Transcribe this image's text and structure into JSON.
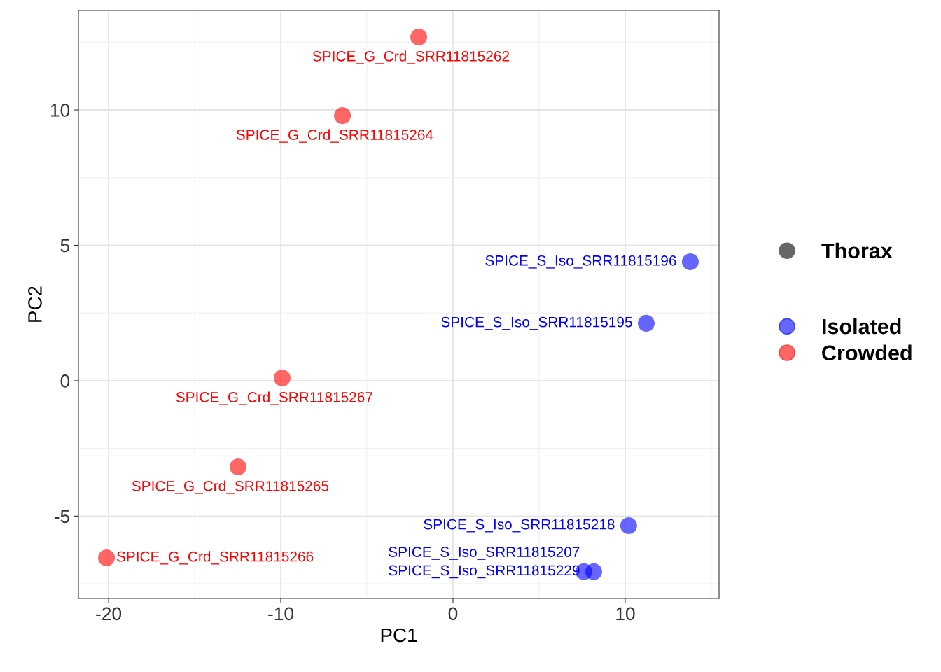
{
  "chart_data": {
    "type": "scatter",
    "xlabel": "PC1",
    "ylabel": "PC2",
    "legend_title": "Thorax",
    "xlim": [
      -21.75,
      15.45
    ],
    "ylim": [
      -8.04,
      13.67
    ],
    "xticks": [
      -20,
      -10,
      0,
      10
    ],
    "yticks": [
      -5,
      0,
      5,
      10
    ],
    "grid": true,
    "legend": "right",
    "marker": "circle",
    "series": [
      {
        "name": "Isolated",
        "color": "#0000ff",
        "x": [
          13.78,
          11.22,
          10.2,
          8.17,
          7.6
        ],
        "values": [
          4.39,
          2.12,
          -5.35,
          -7.05,
          -7.05
        ]
      },
      {
        "name": "Crowded",
        "color": "#ff0000",
        "x": [
          -1.99,
          -6.42,
          -9.92,
          -12.48,
          -20.12
        ],
        "values": [
          12.69,
          9.79,
          0.1,
          -3.18,
          -6.54
        ]
      }
    ],
    "annotations": [
      {
        "text": "SPICE_G_Crd_SRR11815262",
        "x": -1.99,
        "y": 12.69
      },
      {
        "text": "SPICE_G_Crd_SRR11815264",
        "x": -6.42,
        "y": 9.79
      },
      {
        "text": "SPICE_S_Iso_SRR11815196",
        "x": 13.78,
        "y": 4.39
      },
      {
        "text": "SPICE_S_Iso_SRR11815195",
        "x": 11.22,
        "y": 2.12
      },
      {
        "text": "SPICE_G_Crd_SRR11815267",
        "x": -9.92,
        "y": 0.1
      },
      {
        "text": "SPICE_G_Crd_SRR11815265",
        "x": -12.48,
        "y": -3.18
      },
      {
        "text": "SPICE_S_Iso_SRR11815218",
        "x": 10.2,
        "y": -5.35
      },
      {
        "text": "SPICE_G_Crd_SRR11815266",
        "x": -20.12,
        "y": -6.54
      },
      {
        "text": "SPICE_S_Iso_SRR11815229",
        "x": 8.17,
        "y": -7.05
      },
      {
        "text": "SPICE_S_Iso_SRR11815207",
        "x": 7.6,
        "y": -7.05
      }
    ]
  }
}
